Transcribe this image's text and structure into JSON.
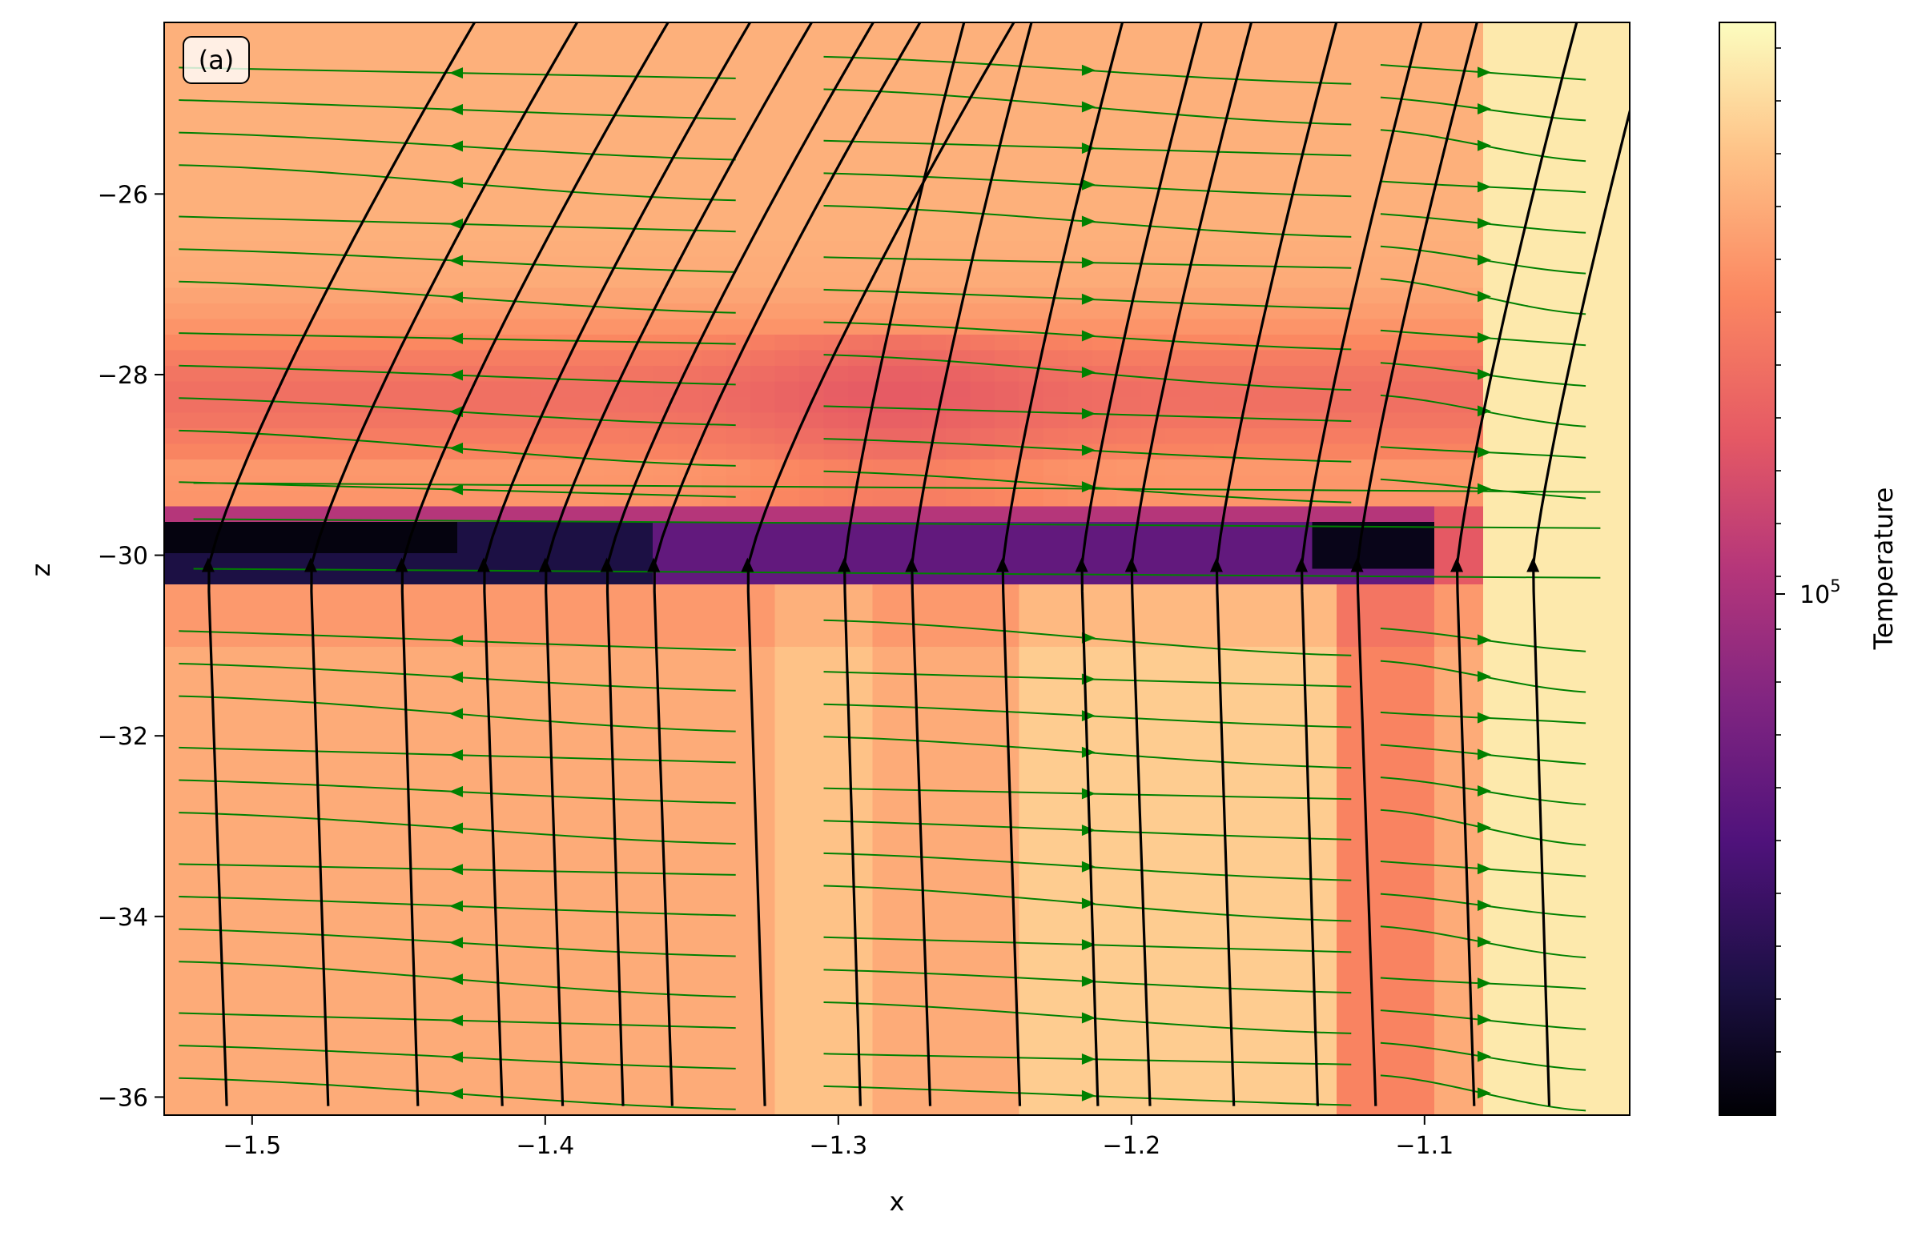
{
  "chart_data": {
    "type": "heatmap",
    "panel_label": "(a)",
    "xlabel": "x",
    "ylabel": "z",
    "xlim": [
      -1.53,
      -1.03
    ],
    "ylim": [
      -36.2,
      -24.1
    ],
    "x_ticks": [
      -1.5,
      -1.4,
      -1.3,
      -1.2,
      -1.1
    ],
    "x_tick_labels": [
      "−1.5",
      "−1.4",
      "−1.3",
      "−1.2",
      "−1.1"
    ],
    "y_ticks": [
      -26,
      -28,
      -30,
      -32,
      -34,
      -36
    ],
    "y_tick_labels": [
      "−26",
      "−28",
      "−30",
      "−32",
      "−34",
      "−36"
    ],
    "colorbar": {
      "label": "Temperature",
      "scale": "log",
      "colormap": "magma",
      "tick_label_base": "10",
      "tick_label_exp": "5",
      "tick_value": 100000
    },
    "field_line_color": "#000000",
    "flow_line_color": "#008000",
    "field_line_starts_x": [
      -1.515,
      -1.48,
      -1.449,
      -1.421,
      -1.4,
      -1.379,
      -1.363,
      -1.331,
      -1.298,
      -1.275,
      -1.244,
      -1.217,
      -1.2,
      -1.171,
      -1.142,
      -1.123,
      -1.089,
      -1.063
    ],
    "dark_layer_z": [
      -30.4,
      -29.4
    ],
    "hot_column_x": [
      -1.08,
      -1.03
    ]
  }
}
